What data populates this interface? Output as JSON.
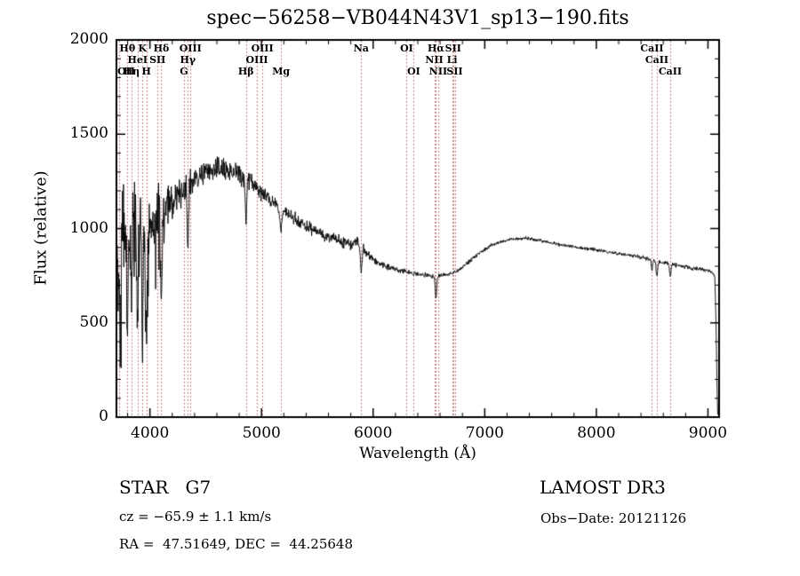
{
  "chart_data": {
    "type": "line",
    "title": "spec−56258−VB044N43V1_sp13−190.fits",
    "xlabel": "Wavelength (Å)",
    "ylabel": "Flux (relative)",
    "xlim": [
      3700,
      9100
    ],
    "ylim": [
      0,
      2000
    ],
    "xticks": [
      4000,
      5000,
      6000,
      7000,
      8000,
      9000
    ],
    "yticks": [
      0,
      500,
      1000,
      1500,
      2000
    ],
    "x_minor_step": 200,
    "y_minor_step": 100,
    "grid": false,
    "legend": "none",
    "line_color": "#000000",
    "marker_line_color": "#b05c5c",
    "noise_seed": 42,
    "continuum": [
      [
        3700,
        880
      ],
      [
        3780,
        960
      ],
      [
        3880,
        1000
      ],
      [
        3980,
        1010
      ],
      [
        4080,
        1060
      ],
      [
        4180,
        1130
      ],
      [
        4280,
        1190
      ],
      [
        4380,
        1240
      ],
      [
        4480,
        1290
      ],
      [
        4580,
        1315
      ],
      [
        4680,
        1315
      ],
      [
        4780,
        1295
      ],
      [
        4880,
        1265
      ],
      [
        4980,
        1205
      ],
      [
        5080,
        1150
      ],
      [
        5180,
        1105
      ],
      [
        5280,
        1060
      ],
      [
        5380,
        1020
      ],
      [
        5480,
        990
      ],
      [
        5580,
        960
      ],
      [
        5680,
        935
      ],
      [
        5780,
        920
      ],
      [
        5860,
        930
      ],
      [
        5960,
        855
      ],
      [
        6060,
        815
      ],
      [
        6160,
        790
      ],
      [
        6260,
        775
      ],
      [
        6360,
        760
      ],
      [
        6460,
        752
      ],
      [
        6560,
        748
      ],
      [
        6660,
        755
      ],
      [
        6760,
        775
      ],
      [
        6860,
        825
      ],
      [
        6960,
        875
      ],
      [
        7060,
        910
      ],
      [
        7160,
        932
      ],
      [
        7260,
        945
      ],
      [
        7360,
        950
      ],
      [
        7460,
        940
      ],
      [
        7560,
        928
      ],
      [
        7660,
        916
      ],
      [
        7760,
        906
      ],
      [
        7860,
        897
      ],
      [
        7960,
        890
      ],
      [
        8060,
        881
      ],
      [
        8160,
        871
      ],
      [
        8260,
        861
      ],
      [
        8360,
        851
      ],
      [
        8460,
        841
      ],
      [
        8560,
        822
      ],
      [
        8660,
        812
      ],
      [
        8760,
        801
      ],
      [
        8860,
        791
      ],
      [
        8960,
        781
      ],
      [
        9040,
        768
      ],
      [
        9062,
        745
      ],
      [
        9072,
        500
      ],
      [
        9082,
        150
      ],
      [
        9088,
        15
      ]
    ],
    "noise_amplitude": [
      [
        3700,
        430
      ],
      [
        3800,
        390
      ],
      [
        3900,
        340
      ],
      [
        4000,
        285
      ],
      [
        4100,
        205
      ],
      [
        4200,
        150
      ],
      [
        4300,
        120
      ],
      [
        4400,
        100
      ],
      [
        4500,
        90
      ],
      [
        4700,
        80
      ],
      [
        4900,
        68
      ],
      [
        5100,
        55
      ],
      [
        5300,
        46
      ],
      [
        5500,
        40
      ],
      [
        5800,
        46
      ],
      [
        6000,
        30
      ],
      [
        6300,
        22
      ],
      [
        6600,
        17
      ],
      [
        7000,
        14
      ],
      [
        7500,
        13
      ],
      [
        8000,
        13
      ],
      [
        8500,
        15
      ],
      [
        8900,
        17
      ],
      [
        9040,
        14
      ],
      [
        9080,
        5
      ]
    ],
    "absorption_lines": [
      {
        "wavelength": 3735,
        "depth": 550,
        "width": 7
      },
      {
        "wavelength": 3798,
        "depth": 480,
        "width": 7
      },
      {
        "wavelength": 3835,
        "depth": 460,
        "width": 7
      },
      {
        "wavelength": 3889,
        "depth": 500,
        "width": 8
      },
      {
        "wavelength": 3933,
        "depth": 680,
        "width": 9
      },
      {
        "wavelength": 3968,
        "depth": 620,
        "width": 9
      },
      {
        "wavelength": 4102,
        "depth": 480,
        "width": 9
      },
      {
        "wavelength": 4340,
        "depth": 330,
        "width": 9
      },
      {
        "wavelength": 4861,
        "depth": 240,
        "width": 9
      },
      {
        "wavelength": 5175,
        "depth": 110,
        "width": 14
      },
      {
        "wavelength": 5893,
        "depth": 130,
        "width": 10
      },
      {
        "wavelength": 6563,
        "depth": 120,
        "width": 9
      },
      {
        "wavelength": 8498,
        "depth": 55,
        "width": 8
      },
      {
        "wavelength": 8542,
        "depth": 75,
        "width": 9
      },
      {
        "wavelength": 8662,
        "depth": 65,
        "width": 9
      }
    ],
    "spectral_lines": [
      {
        "wavelength": 3727,
        "label": "OII",
        "row": 3
      },
      {
        "wavelength": 3798,
        "label": "Hθ",
        "row": 1
      },
      {
        "wavelength": 3835,
        "label": "Hη",
        "row": 3
      },
      {
        "wavelength": 3889,
        "label": "HeI",
        "row": 2
      },
      {
        "wavelength": 3933,
        "label": "K",
        "row": 1
      },
      {
        "wavelength": 3968,
        "label": "H",
        "row": 3
      },
      {
        "wavelength": 4068,
        "label": "SII",
        "row": 2
      },
      {
        "wavelength": 4102,
        "label": "Hδ",
        "row": 1
      },
      {
        "wavelength": 4305,
        "label": "G",
        "row": 3
      },
      {
        "wavelength": 4340,
        "label": "Hγ",
        "row": 2
      },
      {
        "wavelength": 4363,
        "label": "OIII",
        "row": 1
      },
      {
        "wavelength": 4861,
        "label": "Hβ",
        "row": 3
      },
      {
        "wavelength": 4959,
        "label": "OIII",
        "row": 2
      },
      {
        "wavelength": 5007,
        "label": "OIII",
        "row": 1
      },
      {
        "wavelength": 5175,
        "label": "Mg",
        "row": 3
      },
      {
        "wavelength": 5893,
        "label": "Na",
        "row": 1
      },
      {
        "wavelength": 6300,
        "label": "OI",
        "row": 1
      },
      {
        "wavelength": 6364,
        "label": "OI",
        "row": 3
      },
      {
        "wavelength": 6548,
        "label": "NII",
        "row": 2
      },
      {
        "wavelength": 6563,
        "label": "Hα",
        "row": 1
      },
      {
        "wavelength": 6583,
        "label": "NII",
        "row": 3
      },
      {
        "wavelength": 6708,
        "label": "Li",
        "row": 2
      },
      {
        "wavelength": 6717,
        "label": "SII",
        "row": 1
      },
      {
        "wavelength": 6731,
        "label": "SII",
        "row": 3
      },
      {
        "wavelength": 8498,
        "label": "CaII",
        "row": 1
      },
      {
        "wavelength": 8542,
        "label": "CaII",
        "row": 2
      },
      {
        "wavelength": 8662,
        "label": "CaII",
        "row": 3
      }
    ]
  },
  "footer": {
    "class_label": "STAR   G7",
    "survey": "LAMOST DR3",
    "cz": "cz = −65.9 ± 1.1 km/s",
    "obs_date": "Obs−Date: 20121126",
    "coords": "RA =  47.51649, DEC =  44.25648"
  }
}
